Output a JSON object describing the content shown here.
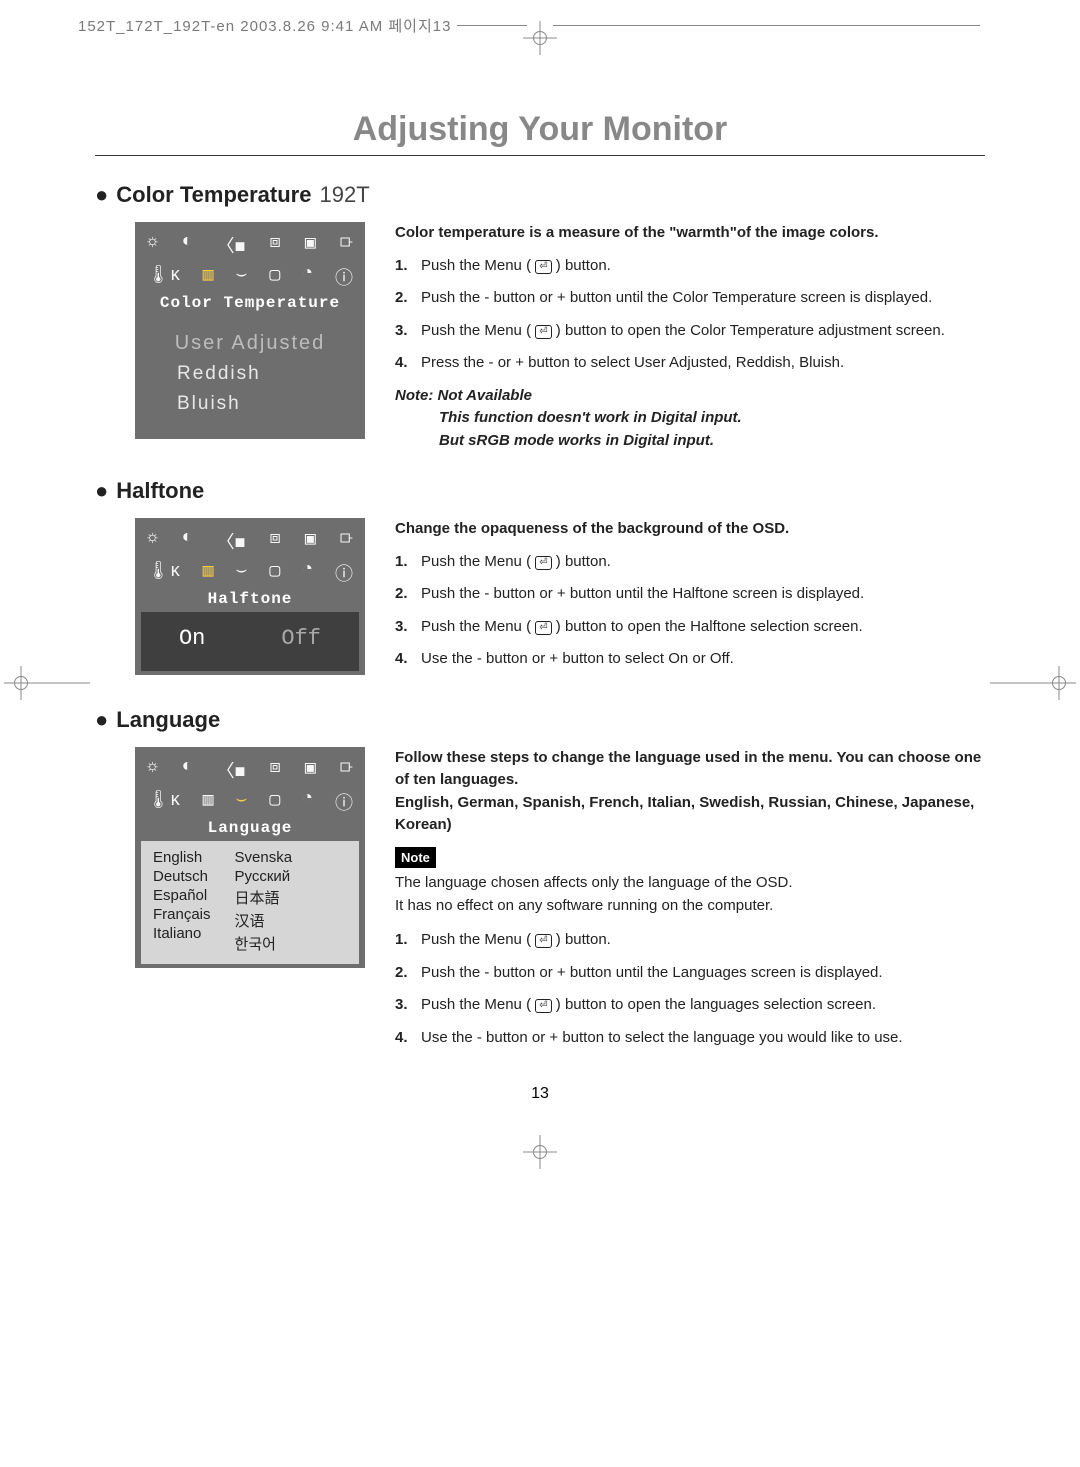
{
  "crop_header": "152T_172T_192T-en  2003.8.26 9:41 AM  페이지13",
  "page_title": "Adjusting Your Monitor",
  "page_number": "13",
  "icon_glyphs_row1": [
    "☼",
    "◐",
    "⦃",
    "▢",
    "▣",
    "⟥"
  ],
  "icon_glyphs_row2": [
    "🌡ᴋ",
    "▥",
    "⌣",
    "▢",
    "◔",
    "ⓘ"
  ],
  "sections": {
    "color_temp": {
      "heading_bold": "Color Temperature",
      "heading_light": "192T",
      "osd_title": "Color Temperature",
      "options": {
        "selected": "User Adjusted",
        "o2": "Reddish",
        "o3": "Bluish"
      },
      "intro": "Color temperature is a measure of the \"warmth\"of the image colors.",
      "steps": {
        "s1a": "Push the Menu (",
        "s1b": ") button.",
        "s2": "Push the - button or + button until the Color Temperature screen is displayed.",
        "s3a": "Push the Menu (",
        "s3b": ") button to open the Color Temperature adjustment screen.",
        "s4": "Press the - or + button to select User Adjusted, Reddish, Bluish."
      },
      "note": {
        "l1": "Note: Not Available",
        "l2": "This function doesn't work in Digital input.",
        "l3": "But sRGB mode works in Digital input."
      }
    },
    "halftone": {
      "heading_bold": "Halftone",
      "osd_title": "Halftone",
      "options": {
        "on": "On",
        "off": "Off"
      },
      "intro": "Change the opaqueness of the background of the OSD.",
      "steps": {
        "s1a": "Push the Menu (",
        "s1b": ") button.",
        "s2": "Push the - button or + button until the Halftone screen is displayed.",
        "s3a": "Push the Menu (",
        "s3b": ") button to open the Halftone selection screen.",
        "s4": "Use the - button or + button to select On or Off."
      }
    },
    "language": {
      "heading_bold": "Language",
      "osd_title": "Language",
      "langs_col1": [
        "English",
        "Deutsch",
        "Español",
        "Français",
        "Italiano"
      ],
      "langs_col2": [
        "Svenska",
        "Русский",
        "日本語",
        "汉语",
        "한국어"
      ],
      "intro1": "Follow these steps to change the language used in the menu. You can choose one of ten languages.",
      "intro2": "English, German, Spanish, French, Italian, Swedish, Russian, Chinese, Japanese, Korean)",
      "note_label": "Note",
      "note_l1": "The language chosen affects only the language of the OSD.",
      "note_l2": "It has no effect on any software running on the computer.",
      "steps": {
        "s1a": "Push the Menu (",
        "s1b": ") button.",
        "s2": "Push the - button or + button until the Languages screen is displayed.",
        "s3a": "Push the Menu (",
        "s3b": ") button to open the languages selection screen.",
        "s4": "Use the - button or + button to select the language you would like to use."
      }
    }
  }
}
